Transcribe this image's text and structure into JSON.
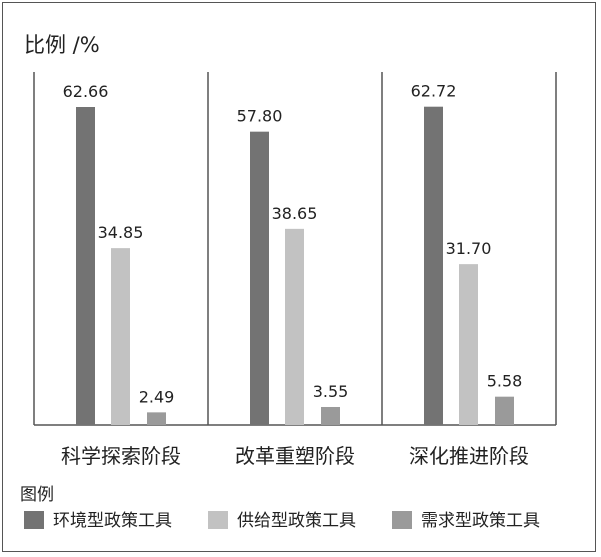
{
  "chart_data": {
    "type": "bar",
    "ylabel": "比例 /%",
    "categories": [
      "科学探索阶段",
      "改革重塑阶段",
      "深化推进阶段"
    ],
    "series": [
      {
        "name": "环境型政策工具",
        "color": "#737373",
        "values": [
          62.66,
          57.8,
          62.72
        ]
      },
      {
        "name": "供给型政策工具",
        "color": "#c2c2c2",
        "values": [
          34.85,
          38.65,
          31.7
        ]
      },
      {
        "name": "需求型政策工具",
        "color": "#9a9a9a",
        "values": [
          2.49,
          3.55,
          5.58
        ]
      }
    ],
    "value_labels": [
      [
        "62.66",
        "57.80",
        "62.72"
      ],
      [
        "34.85",
        "38.65",
        "31.70"
      ],
      [
        "2.49",
        "3.55",
        "5.58"
      ]
    ],
    "ylim": [
      0,
      70
    ],
    "grid": false,
    "legend": {
      "title": "图例",
      "placement": "bottom-left"
    }
  }
}
